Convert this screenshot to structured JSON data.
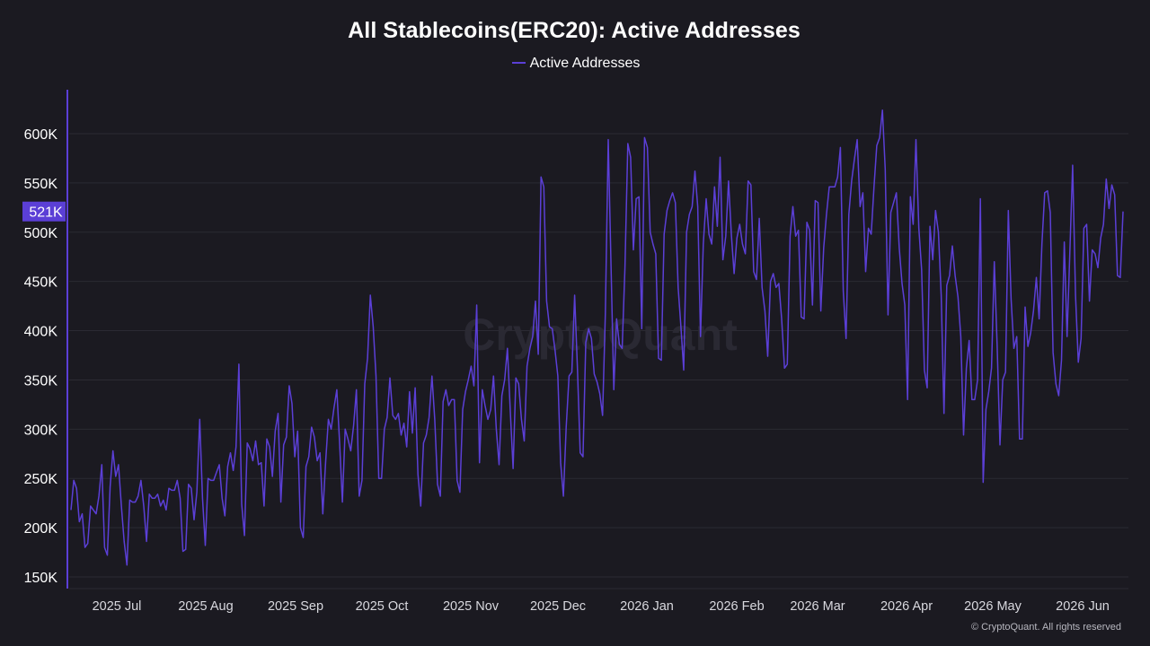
{
  "chart_data": {
    "type": "line",
    "title": "All Stablecoins(ERC20): Active Addresses",
    "legend": [
      "Active Addresses"
    ],
    "legend_position": "top-center",
    "grid": true,
    "y_ticks": [
      "150K",
      "200K",
      "250K",
      "300K",
      "350K",
      "400K",
      "450K",
      "500K",
      "550K",
      "600K"
    ],
    "x_ticks": [
      "2025 Jul",
      "2025 Aug",
      "2025 Sep",
      "2025 Oct",
      "2025 Nov",
      "2025 Dec",
      "2026 Jan",
      "2026 Feb",
      "2026 Mar",
      "2026 Apr",
      "2026 May",
      "2026 Jun"
    ],
    "ylim": [
      145000,
      650000
    ],
    "current_value_label": "521K",
    "line_color": "#5b3fd6",
    "series": [
      {
        "name": "Active Addresses",
        "values": [
          218000,
          248000,
          240000,
          206000,
          214000,
          180000,
          184000,
          222000,
          218000,
          214000,
          232000,
          264000,
          180000,
          172000,
          242000,
          278000,
          252000,
          264000,
          222000,
          186000,
          162000,
          228000,
          226000,
          226000,
          232000,
          248000,
          222000,
          186000,
          234000,
          230000,
          230000,
          234000,
          222000,
          228000,
          218000,
          240000,
          238000,
          238000,
          248000,
          230000,
          176000,
          178000,
          244000,
          240000,
          208000,
          236000,
          310000,
          230000,
          182000,
          250000,
          248000,
          248000,
          256000,
          264000,
          230000,
          212000,
          262000,
          276000,
          258000,
          282000,
          366000,
          224000,
          192000,
          286000,
          280000,
          268000,
          288000,
          264000,
          266000,
          222000,
          290000,
          282000,
          252000,
          298000,
          316000,
          226000,
          284000,
          292000,
          344000,
          326000,
          272000,
          298000,
          200000,
          190000,
          262000,
          272000,
          302000,
          292000,
          268000,
          276000,
          214000,
          266000,
          310000,
          300000,
          322000,
          340000,
          286000,
          226000,
          300000,
          290000,
          278000,
          304000,
          340000,
          232000,
          248000,
          346000,
          372000,
          436000,
          404000,
          354000,
          250000,
          250000,
          300000,
          312000,
          352000,
          314000,
          310000,
          316000,
          294000,
          306000,
          282000,
          338000,
          296000,
          342000,
          254000,
          222000,
          286000,
          294000,
          312000,
          354000,
          310000,
          244000,
          232000,
          328000,
          340000,
          324000,
          330000,
          330000,
          248000,
          236000,
          320000,
          338000,
          350000,
          364000,
          344000,
          426000,
          266000,
          340000,
          324000,
          310000,
          320000,
          354000,
          300000,
          264000,
          334000,
          350000,
          382000,
          318000,
          260000,
          352000,
          346000,
          310000,
          288000,
          364000,
          382000,
          394000,
          430000,
          376000,
          556000,
          546000,
          430000,
          404000,
          402000,
          380000,
          354000,
          266000,
          232000,
          302000,
          354000,
          358000,
          436000,
          362000,
          276000,
          272000,
          388000,
          402000,
          392000,
          356000,
          348000,
          336000,
          314000,
          418000,
          594000,
          466000,
          340000,
          412000,
          386000,
          382000,
          464000,
          590000,
          576000,
          482000,
          534000,
          536000,
          402000,
          596000,
          586000,
          500000,
          488000,
          478000,
          372000,
          370000,
          498000,
          522000,
          532000,
          540000,
          530000,
          444000,
          404000,
          360000,
          500000,
          518000,
          526000,
          562000,
          526000,
          394000,
          488000,
          534000,
          498000,
          488000,
          546000,
          506000,
          576000,
          472000,
          496000,
          552000,
          498000,
          458000,
          494000,
          508000,
          488000,
          478000,
          552000,
          548000,
          460000,
          452000,
          514000,
          444000,
          420000,
          374000,
          450000,
          458000,
          444000,
          448000,
          412000,
          362000,
          366000,
          496000,
          526000,
          496000,
          502000,
          414000,
          412000,
          510000,
          502000,
          426000,
          532000,
          530000,
          420000,
          484000,
          518000,
          546000,
          546000,
          546000,
          556000,
          586000,
          440000,
          392000,
          518000,
          552000,
          574000,
          594000,
          526000,
          540000,
          460000,
          504000,
          498000,
          546000,
          588000,
          596000,
          624000,
          564000,
          416000,
          520000,
          530000,
          540000,
          484000,
          448000,
          426000,
          330000,
          536000,
          508000,
          594000,
          504000,
          462000,
          360000,
          342000,
          506000,
          472000,
          522000,
          500000,
          436000,
          316000,
          446000,
          456000,
          486000,
          456000,
          434000,
          394000,
          294000,
          362000,
          390000,
          330000,
          330000,
          350000,
          534000,
          246000,
          320000,
          338000,
          362000,
          470000,
          384000,
          284000,
          350000,
          358000,
          522000,
          432000,
          382000,
          394000,
          290000,
          290000,
          424000,
          384000,
          398000,
          420000,
          454000,
          412000,
          488000,
          540000,
          542000,
          520000,
          378000,
          346000,
          334000,
          370000,
          490000,
          394000,
          480000,
          568000,
          436000,
          368000,
          392000,
          504000,
          508000,
          430000,
          482000,
          478000,
          464000,
          494000,
          508000,
          554000,
          524000,
          548000,
          538000,
          456000,
          454000,
          521000
        ]
      }
    ]
  },
  "footer": {
    "copyright": "© CryptoQuant. All rights reserved"
  },
  "watermark": {
    "text": "CryptoQuant"
  }
}
